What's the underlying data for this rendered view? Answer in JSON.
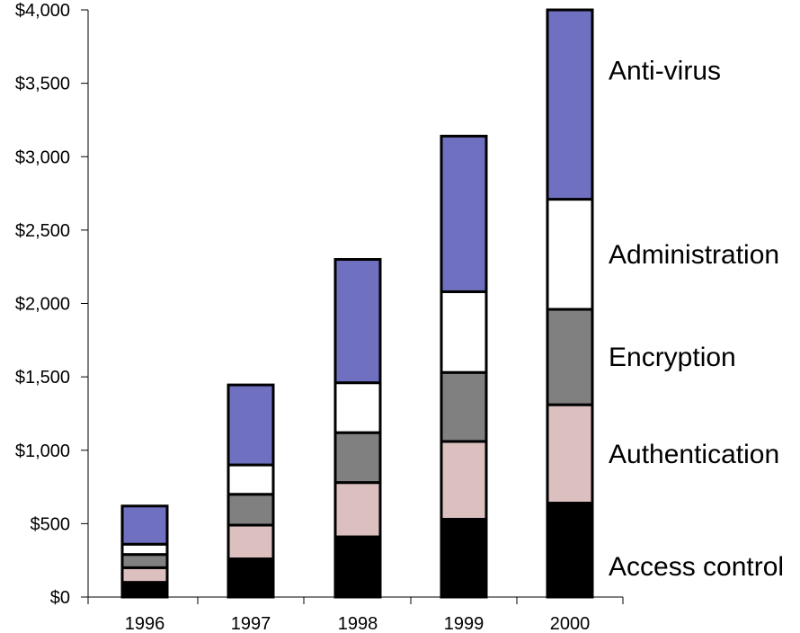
{
  "chart_data": {
    "type": "bar",
    "stacked": true,
    "title": "",
    "xlabel": "",
    "ylabel": "",
    "categories": [
      "1996",
      "1997",
      "1998",
      "1999",
      "2000"
    ],
    "y_tick_labels": [
      "$0",
      "$500",
      "$1,000",
      "$1,500",
      "$2,000",
      "$2,500",
      "$3,000",
      "$3,500",
      "$4,000"
    ],
    "ylim": [
      0,
      4000
    ],
    "grid": false,
    "legend_placement": "right, labels aligned beside the 2000 bar segments",
    "series": [
      {
        "name": "Access control",
        "color": "#000000",
        "values": [
          100,
          260,
          410,
          530,
          640
        ]
      },
      {
        "name": "Authentication",
        "color": "#dcc0c0",
        "values": [
          100,
          230,
          370,
          530,
          670
        ]
      },
      {
        "name": "Encryption",
        "color": "#808080",
        "values": [
          90,
          210,
          340,
          470,
          650
        ]
      },
      {
        "name": "Administration",
        "color": "#ffffff",
        "values": [
          70,
          200,
          340,
          550,
          750
        ]
      },
      {
        "name": "Anti-virus",
        "color": "#7070c0",
        "values": [
          260,
          545,
          840,
          1060,
          1290
        ]
      }
    ]
  }
}
